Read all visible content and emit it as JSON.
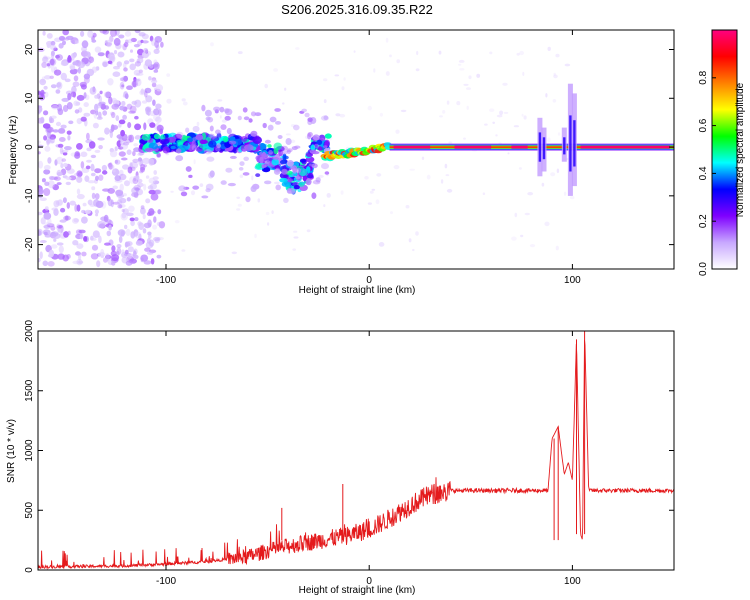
{
  "title": "S206.2025.316.09.35.R22",
  "chart_data": [
    {
      "type": "heatmap",
      "title": "S206.2025.316.09.35.R22",
      "xlabel": "Height of straight line (km)",
      "ylabel": "Frequency (Hz)",
      "xlim": [
        -163,
        150
      ],
      "ylim": [
        -25,
        24
      ],
      "x_ticks": [
        -100,
        0,
        100
      ],
      "y_ticks": [
        -20,
        -10,
        0,
        10,
        20
      ],
      "colorbar": {
        "label": "Normalized spectral amplitude",
        "range": [
          0,
          1
        ],
        "ticks": [
          0.0,
          0.2,
          0.4,
          0.6,
          0.8
        ],
        "colors": [
          "#ffffff",
          "#c8a8ff",
          "#7f00ff",
          "#0000ff",
          "#00ffff",
          "#00ff00",
          "#ffff00",
          "#ff8000",
          "#ff0000",
          "#ff0080"
        ]
      },
      "segments": [
        {
          "name": "noise",
          "x_range": [
            -163,
            -102
          ],
          "freq_range": [
            -24,
            24
          ],
          "amplitude": 0.08
        },
        {
          "name": "broadband",
          "x_range": [
            -112,
            -20
          ],
          "freq_range": [
            -10,
            5
          ],
          "amplitude": 0.3
        },
        {
          "name": "ramp",
          "x_range": [
            -22,
            10
          ],
          "freq_range": [
            -2.5,
            1
          ],
          "amplitude": 0.55
        },
        {
          "name": "tone",
          "x_range": [
            10,
            150
          ],
          "freq_range": [
            -0.5,
            0.5
          ],
          "amplitude": 1.0
        }
      ]
    },
    {
      "type": "line",
      "xlabel": "Height of straight line (km)",
      "ylabel": "SNR (10 * v/v)",
      "xlim": [
        -163,
        150
      ],
      "ylim": [
        0,
        2000
      ],
      "x_ticks": [
        -100,
        0,
        100
      ],
      "y_ticks": [
        0,
        500,
        1000,
        1500,
        2000
      ],
      "series": [
        {
          "name": "SNR",
          "color": "#e41a1c",
          "x": [
            -163,
            -140,
            -120,
            -100,
            -80,
            -60,
            -50,
            -40,
            -30,
            -20,
            -10,
            0,
            10,
            20,
            30,
            40,
            50,
            60,
            70,
            80,
            88,
            90,
            93,
            96,
            98,
            100,
            102,
            104,
            105,
            106,
            108,
            120,
            135,
            150
          ],
          "y": [
            25,
            30,
            35,
            50,
            70,
            110,
            160,
            200,
            230,
            260,
            290,
            340,
            430,
            540,
            630,
            660,
            665,
            670,
            665,
            670,
            670,
            1100,
            1200,
            800,
            900,
            750,
            1930,
            300,
            250,
            2000,
            680,
            665,
            670,
            675
          ]
        }
      ],
      "spikes": [
        {
          "x": -43,
          "y": 520
        },
        {
          "x": -13,
          "y": 720
        },
        {
          "x": 91,
          "y": 1100
        },
        {
          "x": 93,
          "y": 1200
        },
        {
          "x": 102,
          "y": 1930
        },
        {
          "x": 106,
          "y": 2000
        }
      ]
    }
  ]
}
